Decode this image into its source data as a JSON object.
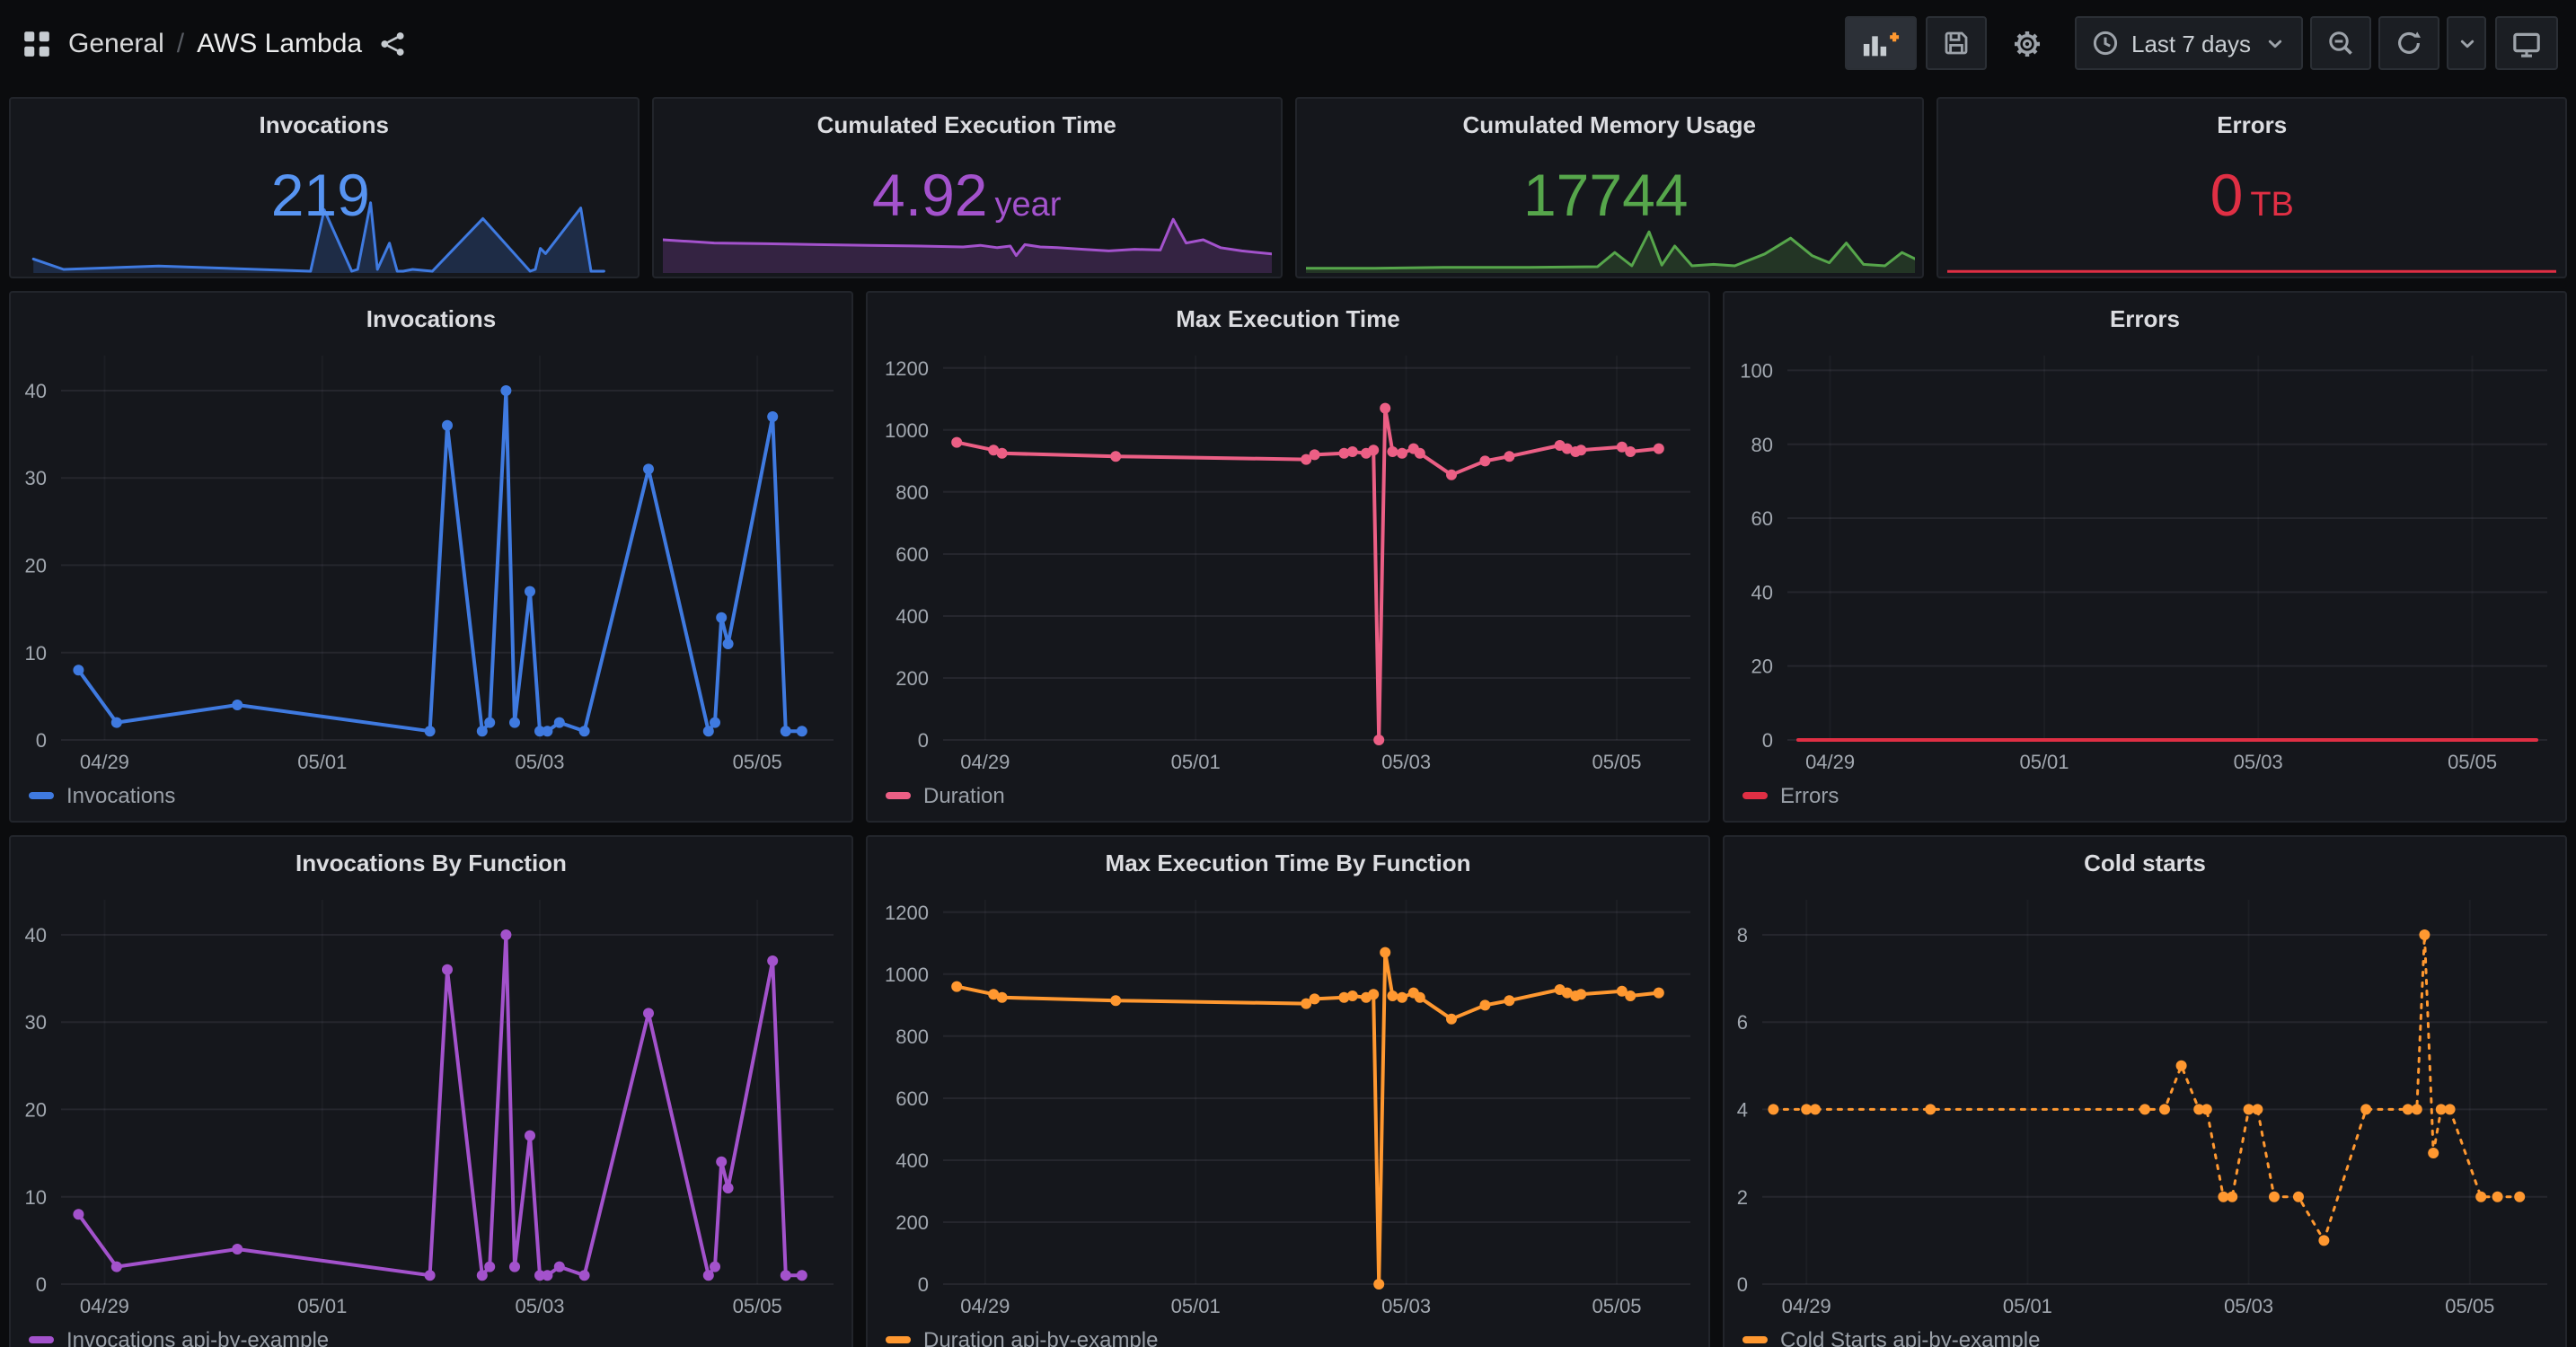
{
  "nav": {
    "breadcrumb": {
      "section": "General",
      "separator": "/",
      "page": "AWS Lambda"
    },
    "time_range_label": "Last 7 days"
  },
  "stats": [
    {
      "title": "Invocations",
      "value": "219",
      "unit": "",
      "color": "#5794f2"
    },
    {
      "title": "Cumulated Execution Time",
      "value": "4.92",
      "unit": "year",
      "color": "#a352cc"
    },
    {
      "title": "Cumulated Memory Usage",
      "value": "17744",
      "unit": "",
      "color": "#56a64b"
    },
    {
      "title": "Errors",
      "value": "0",
      "unit": "TB",
      "color": "#e02f44"
    }
  ],
  "chart_data": {
    "x_domain": [
      0.6,
      7.7
    ],
    "x_ticks": [
      {
        "v": 1,
        "label": "04/29"
      },
      {
        "v": 3,
        "label": "05/01"
      },
      {
        "v": 5,
        "label": "05/03"
      },
      {
        "v": 7,
        "label": "05/05"
      }
    ],
    "sparklines": [
      {
        "type": "area",
        "axes": false,
        "y_domain": [
          0,
          45
        ],
        "series": [
          {
            "name": "Invocations",
            "color": "#3f7ae0",
            "fill": true,
            "width": 1.5,
            "point_radius": 0,
            "points": [
              [
                0.76,
                8
              ],
              [
                1.11,
                2
              ],
              [
                2.22,
                4
              ],
              [
                3.99,
                1
              ],
              [
                4.15,
                36
              ],
              [
                4.47,
                1
              ],
              [
                4.54,
                2
              ],
              [
                4.69,
                40
              ],
              [
                4.77,
                2
              ],
              [
                4.91,
                17
              ],
              [
                5.0,
                1
              ],
              [
                5.07,
                1
              ],
              [
                5.18,
                2
              ],
              [
                5.41,
                1
              ],
              [
                6.0,
                31
              ],
              [
                6.55,
                1
              ],
              [
                6.61,
                2
              ],
              [
                6.67,
                14
              ],
              [
                6.73,
                11
              ],
              [
                7.14,
                37
              ],
              [
                7.26,
                1
              ],
              [
                7.41,
                1
              ]
            ]
          }
        ]
      },
      {
        "type": "area",
        "axes": false,
        "y_domain": [
          0,
          100
        ],
        "series": [
          {
            "name": "Execution Time",
            "color": "#a352cc",
            "fill": true,
            "width": 1.5,
            "point_radius": 0,
            "points": [
              [
                0.6,
                42
              ],
              [
                0.9,
                40
              ],
              [
                1.2,
                38
              ],
              [
                1.8,
                37
              ],
              [
                2.4,
                36
              ],
              [
                3.0,
                35
              ],
              [
                3.6,
                34
              ],
              [
                4.1,
                33
              ],
              [
                4.3,
                35
              ],
              [
                4.5,
                32
              ],
              [
                4.65,
                34
              ],
              [
                4.72,
                22
              ],
              [
                4.82,
                36
              ],
              [
                5.0,
                33
              ],
              [
                5.2,
                32
              ],
              [
                5.5,
                30
              ],
              [
                5.8,
                28
              ],
              [
                6.1,
                30
              ],
              [
                6.4,
                29
              ],
              [
                6.55,
                68
              ],
              [
                6.7,
                38
              ],
              [
                6.9,
                42
              ],
              [
                7.1,
                32
              ],
              [
                7.35,
                28
              ],
              [
                7.7,
                24
              ]
            ]
          }
        ]
      },
      {
        "type": "area",
        "axes": false,
        "y_domain": [
          0,
          100
        ],
        "series": [
          {
            "name": "Memory Usage",
            "color": "#56a64b",
            "fill": true,
            "width": 1.5,
            "point_radius": 0,
            "points": [
              [
                0.6,
                6
              ],
              [
                1.4,
                6
              ],
              [
                2.2,
                7
              ],
              [
                3.2,
                7
              ],
              [
                4.0,
                8
              ],
              [
                4.2,
                26
              ],
              [
                4.4,
                9
              ],
              [
                4.6,
                52
              ],
              [
                4.75,
                10
              ],
              [
                4.9,
                34
              ],
              [
                5.1,
                9
              ],
              [
                5.35,
                11
              ],
              [
                5.6,
                9
              ],
              [
                5.95,
                24
              ],
              [
                6.25,
                44
              ],
              [
                6.5,
                22
              ],
              [
                6.7,
                13
              ],
              [
                6.9,
                38
              ],
              [
                7.1,
                11
              ],
              [
                7.35,
                9
              ],
              [
                7.55,
                26
              ],
              [
                7.7,
                18
              ]
            ]
          }
        ]
      },
      {
        "type": "line",
        "axes": false,
        "y_domain": [
          0,
          100
        ],
        "series": [
          {
            "name": "Errors",
            "color": "#e02f44",
            "fill": false,
            "width": 1.5,
            "point_radius": 0,
            "points": [
              [
                0.6,
                2
              ],
              [
                7.7,
                2
              ]
            ]
          }
        ]
      }
    ],
    "timeseries": [
      {
        "type": "line",
        "title": "Invocations",
        "y_domain": [
          0,
          44
        ],
        "y_ticks": [
          0,
          10,
          20,
          30,
          40
        ],
        "series": [
          {
            "name": "Invocations",
            "color": "#3f7ae0",
            "width": 2,
            "point_radius": 3,
            "points": [
              [
                0.76,
                8
              ],
              [
                1.11,
                2
              ],
              [
                2.22,
                4
              ],
              [
                3.99,
                1
              ],
              [
                4.15,
                36
              ],
              [
                4.47,
                1
              ],
              [
                4.54,
                2
              ],
              [
                4.69,
                40
              ],
              [
                4.77,
                2
              ],
              [
                4.91,
                17
              ],
              [
                5.0,
                1
              ],
              [
                5.07,
                1
              ],
              [
                5.18,
                2
              ],
              [
                5.41,
                1
              ],
              [
                6.0,
                31
              ],
              [
                6.55,
                1
              ],
              [
                6.61,
                2
              ],
              [
                6.67,
                14
              ],
              [
                6.73,
                11
              ],
              [
                7.14,
                37
              ],
              [
                7.26,
                1
              ],
              [
                7.41,
                1
              ]
            ]
          }
        ]
      },
      {
        "type": "line",
        "title": "Max Execution Time",
        "y_domain": [
          0,
          1240
        ],
        "y_ticks": [
          0,
          200,
          400,
          600,
          800,
          1000,
          1200
        ],
        "series": [
          {
            "name": "Duration",
            "color": "#ec5f85",
            "width": 2,
            "point_radius": 3,
            "points": [
              [
                0.73,
                960
              ],
              [
                1.08,
                935
              ],
              [
                1.16,
                925
              ],
              [
                2.24,
                915
              ],
              [
                4.05,
                905
              ],
              [
                4.13,
                920
              ],
              [
                4.41,
                925
              ],
              [
                4.49,
                930
              ],
              [
                4.62,
                925
              ],
              [
                4.69,
                935
              ],
              [
                4.74,
                0
              ],
              [
                4.8,
                1070
              ],
              [
                4.87,
                930
              ],
              [
                4.96,
                925
              ],
              [
                5.07,
                940
              ],
              [
                5.13,
                925
              ],
              [
                5.43,
                855
              ],
              [
                5.75,
                900
              ],
              [
                5.98,
                915
              ],
              [
                6.46,
                950
              ],
              [
                6.53,
                940
              ],
              [
                6.61,
                930
              ],
              [
                6.66,
                935
              ],
              [
                7.05,
                945
              ],
              [
                7.13,
                930
              ],
              [
                7.4,
                940
              ]
            ]
          }
        ]
      },
      {
        "type": "line",
        "title": "Errors",
        "y_domain": [
          0,
          104
        ],
        "y_ticks": [
          0,
          20,
          40,
          60,
          80,
          100
        ],
        "series": [
          {
            "name": "Errors",
            "color": "#e02f44",
            "width": 2,
            "point_radius": 0,
            "points": [
              [
                0.7,
                0
              ],
              [
                7.6,
                0
              ]
            ]
          }
        ]
      },
      {
        "type": "line",
        "title": "Invocations By Function",
        "y_domain": [
          0,
          44
        ],
        "y_ticks": [
          0,
          10,
          20,
          30,
          40
        ],
        "series": [
          {
            "name": "Invocations api-by-example",
            "color": "#a352cc",
            "width": 2,
            "point_radius": 3,
            "points": [
              [
                0.76,
                8
              ],
              [
                1.11,
                2
              ],
              [
                2.22,
                4
              ],
              [
                3.99,
                1
              ],
              [
                4.15,
                36
              ],
              [
                4.47,
                1
              ],
              [
                4.54,
                2
              ],
              [
                4.69,
                40
              ],
              [
                4.77,
                2
              ],
              [
                4.91,
                17
              ],
              [
                5.0,
                1
              ],
              [
                5.07,
                1
              ],
              [
                5.18,
                2
              ],
              [
                5.41,
                1
              ],
              [
                6.0,
                31
              ],
              [
                6.55,
                1
              ],
              [
                6.61,
                2
              ],
              [
                6.67,
                14
              ],
              [
                6.73,
                11
              ],
              [
                7.14,
                37
              ],
              [
                7.26,
                1
              ],
              [
                7.41,
                1
              ]
            ]
          }
        ]
      },
      {
        "type": "line",
        "title": "Max Execution Time By Function",
        "y_domain": [
          0,
          1240
        ],
        "y_ticks": [
          0,
          200,
          400,
          600,
          800,
          1000,
          1200
        ],
        "series": [
          {
            "name": "Duration api-by-example",
            "color": "#ff9830",
            "width": 2,
            "point_radius": 3,
            "points": [
              [
                0.73,
                960
              ],
              [
                1.08,
                935
              ],
              [
                1.16,
                925
              ],
              [
                2.24,
                915
              ],
              [
                4.05,
                905
              ],
              [
                4.13,
                920
              ],
              [
                4.41,
                925
              ],
              [
                4.49,
                930
              ],
              [
                4.62,
                925
              ],
              [
                4.69,
                935
              ],
              [
                4.74,
                0
              ],
              [
                4.8,
                1070
              ],
              [
                4.87,
                930
              ],
              [
                4.96,
                925
              ],
              [
                5.07,
                940
              ],
              [
                5.13,
                925
              ],
              [
                5.43,
                855
              ],
              [
                5.75,
                900
              ],
              [
                5.98,
                915
              ],
              [
                6.46,
                950
              ],
              [
                6.53,
                940
              ],
              [
                6.61,
                930
              ],
              [
                6.66,
                935
              ],
              [
                7.05,
                945
              ],
              [
                7.13,
                930
              ],
              [
                7.4,
                940
              ]
            ]
          }
        ]
      },
      {
        "type": "line",
        "title": "Cold starts",
        "y_domain": [
          0,
          8.8
        ],
        "y_ticks": [
          0,
          2,
          4,
          6,
          8
        ],
        "series": [
          {
            "name": "Cold Starts api-by-example",
            "color": "#ff9830",
            "width": 1.5,
            "point_radius": 3,
            "dashed": true,
            "points": [
              [
                0.7,
                4
              ],
              [
                1.0,
                4
              ],
              [
                1.08,
                4
              ],
              [
                2.12,
                4
              ],
              [
                4.06,
                4
              ],
              [
                4.24,
                4
              ],
              [
                4.39,
                5
              ],
              [
                4.55,
                4
              ],
              [
                4.62,
                4
              ],
              [
                4.77,
                2
              ],
              [
                4.85,
                2
              ],
              [
                5.0,
                4
              ],
              [
                5.08,
                4
              ],
              [
                5.23,
                2
              ],
              [
                5.45,
                2
              ],
              [
                5.68,
                1
              ],
              [
                6.06,
                4
              ],
              [
                6.44,
                4
              ],
              [
                6.52,
                4
              ],
              [
                6.59,
                8
              ],
              [
                6.67,
                3
              ],
              [
                6.74,
                4
              ],
              [
                6.82,
                4
              ],
              [
                7.1,
                2
              ],
              [
                7.25,
                2
              ],
              [
                7.45,
                2
              ]
            ]
          }
        ]
      }
    ]
  }
}
